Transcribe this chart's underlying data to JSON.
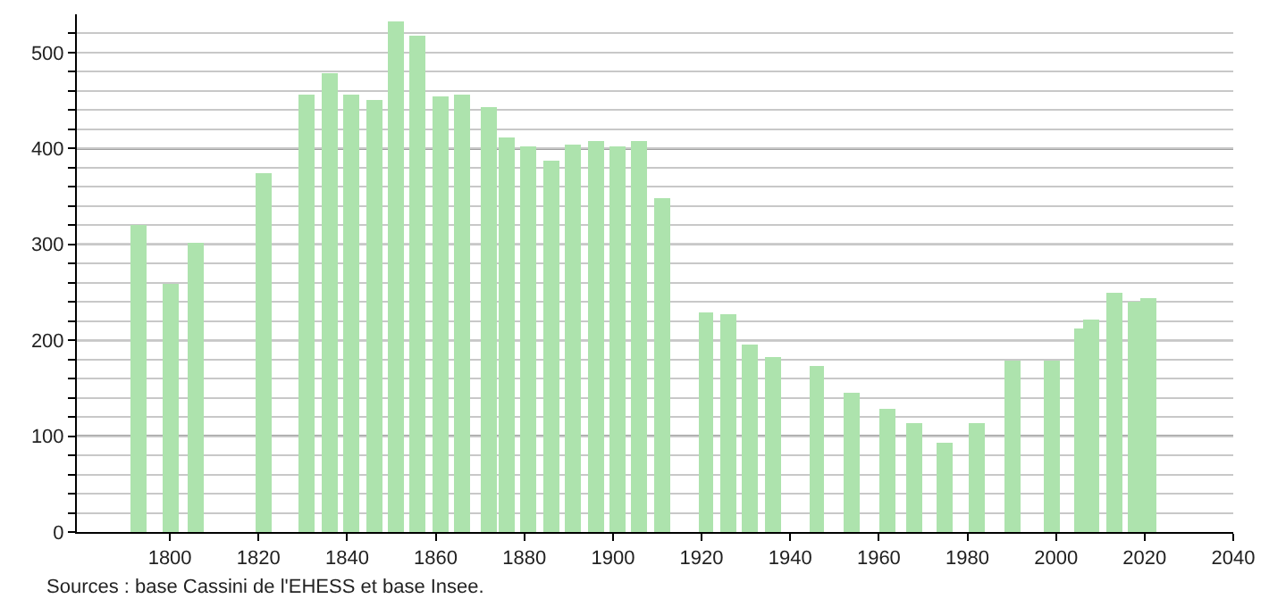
{
  "chart_data": {
    "type": "bar",
    "color": "#ade3ad",
    "x": [
      1793,
      1800,
      1806,
      1821,
      1831,
      1836,
      1841,
      1846,
      1851,
      1856,
      1861,
      1866,
      1872,
      1876,
      1881,
      1886,
      1891,
      1896,
      1901,
      1906,
      1911,
      1921,
      1926,
      1931,
      1936,
      1946,
      1954,
      1962,
      1968,
      1975,
      1982,
      1990,
      1999,
      2006,
      2008,
      2013,
      2018,
      2021
    ],
    "values": [
      320,
      259,
      302,
      375,
      457,
      478,
      457,
      451,
      532,
      517,
      455,
      457,
      444,
      411,
      403,
      388,
      405,
      407,
      403,
      407,
      348,
      229,
      227,
      196,
      182,
      173,
      145,
      128,
      113,
      93,
      113,
      178,
      178,
      212,
      222,
      250,
      240,
      244
    ],
    "xlim": [
      1779,
      2040
    ],
    "xticks": [
      1800,
      1820,
      1840,
      1860,
      1880,
      1900,
      1920,
      1940,
      1960,
      1980,
      2000,
      2020,
      2040
    ],
    "ylim": [
      0,
      540
    ],
    "yticks": [
      0,
      {
        "value": 20,
        "label": null
      },
      {
        "value": 40,
        "label": null
      },
      {
        "value": 60,
        "label": null
      },
      {
        "value": 80,
        "label": null
      },
      100,
      {
        "value": 120,
        "label": null
      },
      {
        "value": 140,
        "label": null
      },
      {
        "value": 160,
        "label": null
      },
      {
        "value": 180,
        "label": null
      },
      200,
      {
        "value": 220,
        "label": null
      },
      {
        "value": 240,
        "label": null
      },
      {
        "value": 260,
        "label": null
      },
      {
        "value": 280,
        "label": null
      },
      300,
      {
        "value": 320,
        "label": null
      },
      {
        "value": 340,
        "label": null
      },
      {
        "value": 360,
        "label": null
      },
      {
        "value": 380,
        "label": null
      },
      400,
      {
        "value": 420,
        "label": null
      },
      {
        "value": 440,
        "label": null
      },
      {
        "value": 460,
        "label": null
      },
      {
        "value": 480,
        "label": null
      },
      500,
      {
        "value": 520,
        "label": null
      }
    ],
    "grid": "y",
    "annotations": [
      "Sources : base Cassini de l'EHESS et base Insee."
    ]
  }
}
